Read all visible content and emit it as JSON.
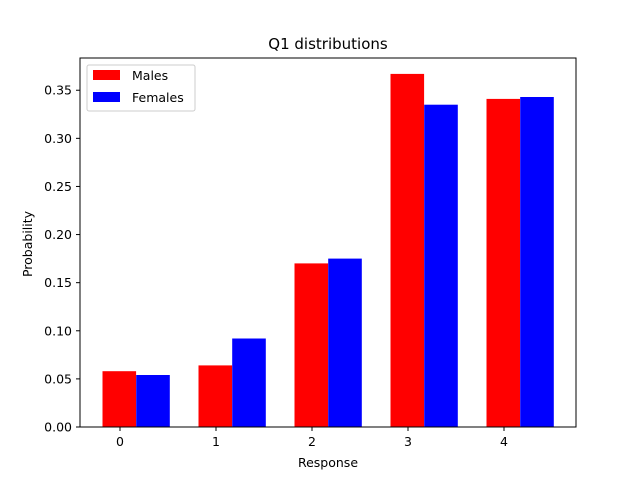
{
  "chart_data": {
    "type": "bar",
    "title": "Q1 distributions",
    "xlabel": "Response",
    "ylabel": "Probability",
    "categories": [
      "0",
      "1",
      "2",
      "3",
      "4"
    ],
    "series": [
      {
        "name": "Males",
        "color": "#ff0000",
        "values": [
          0.058,
          0.064,
          0.17,
          0.367,
          0.341
        ]
      },
      {
        "name": "Females",
        "color": "#0000ff",
        "values": [
          0.054,
          0.092,
          0.175,
          0.335,
          0.343
        ]
      }
    ],
    "ylim": [
      0,
      0.35
    ],
    "yticks": [
      "0.00",
      "0.05",
      "0.10",
      "0.15",
      "0.20",
      "0.25",
      "0.30",
      "0.35"
    ],
    "legend_position": "upper-left",
    "grid": false
  }
}
